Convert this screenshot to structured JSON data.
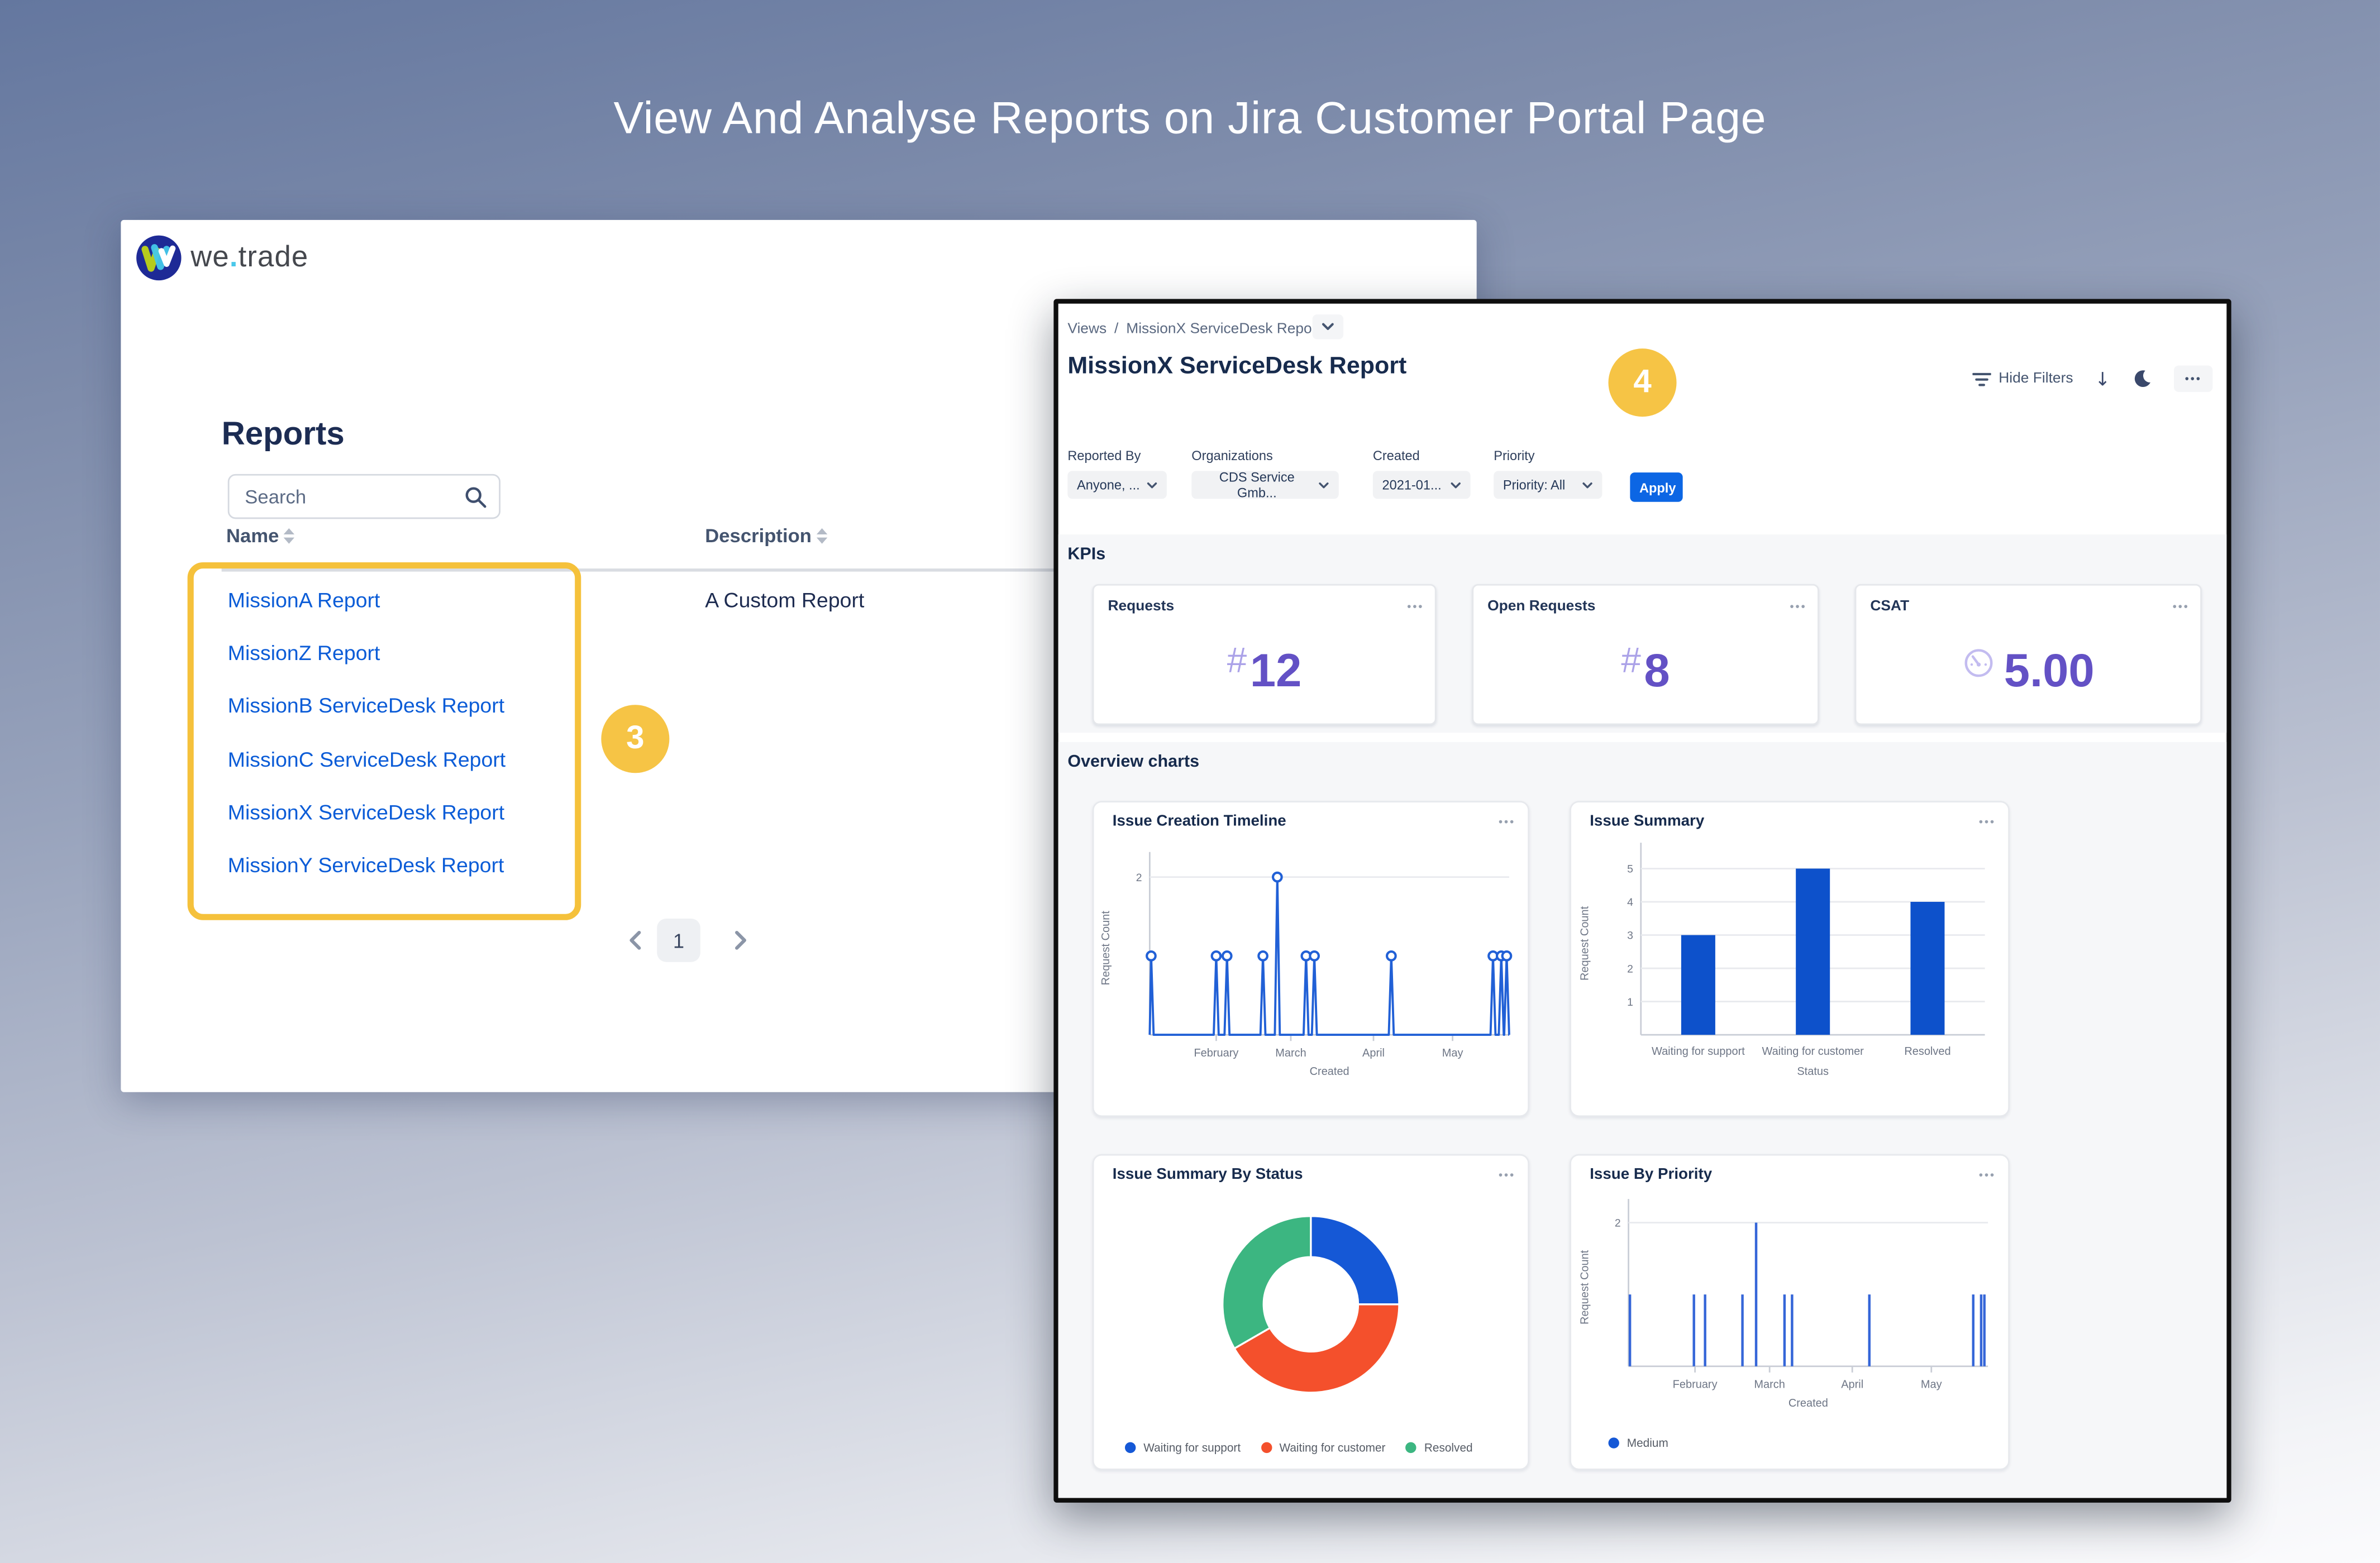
{
  "slide": {
    "title": "View And Analyse Reports on Jira Customer Portal Page"
  },
  "badges": {
    "step3": "3",
    "step4": "4"
  },
  "portal": {
    "brand": {
      "we": "we",
      "dot": ".",
      "trade": "trade"
    },
    "heading": "Reports",
    "search": {
      "placeholder": "Search"
    },
    "table": {
      "columns": [
        {
          "label": "Name"
        },
        {
          "label": "Description"
        }
      ],
      "rows": [
        {
          "name": "MissionA Report",
          "description": "A Custom Report"
        },
        {
          "name": "MissionZ Report",
          "description": ""
        },
        {
          "name": "MissionB ServiceDesk Report",
          "description": ""
        },
        {
          "name": "MissionC ServiceDesk Report",
          "description": ""
        },
        {
          "name": "MissionX ServiceDesk Report",
          "description": ""
        },
        {
          "name": "MissionY ServiceDesk Report",
          "description": ""
        }
      ]
    },
    "pagination": {
      "current_page": "1"
    }
  },
  "dashboard": {
    "breadcrumb": {
      "root": "Views",
      "separator": "/",
      "current": "MissionX ServiceDesk Report"
    },
    "title": "MissionX ServiceDesk Report",
    "toolbar": {
      "hide_filters_label": "Hide Filters",
      "more_label": "•••"
    },
    "filters": {
      "fields": [
        {
          "label": "Reported By",
          "value": "Anyone, ..."
        },
        {
          "label": "Organizations",
          "value": "CDS Service Gmb..."
        },
        {
          "label": "Created",
          "value": "2021-01..."
        },
        {
          "label": "Priority",
          "value": "Priority: All"
        }
      ],
      "apply_label": "Apply"
    },
    "kpi_section_title": "KPIs",
    "kpis": [
      {
        "label": "Requests",
        "prefix": "#",
        "value": "12"
      },
      {
        "label": "Open Requests",
        "prefix": "#",
        "value": "8"
      },
      {
        "label": "CSAT",
        "icon": "gauge-icon",
        "value": "5.00"
      }
    ],
    "charts_section_title": "Overview charts",
    "card_menu_label": "•••"
  },
  "chart_data": [
    {
      "type": "line",
      "title": "Issue Creation Timeline",
      "xlabel": "Created",
      "ylabel": "Request Count",
      "ylim": [
        0,
        2.2
      ],
      "yticks": [
        {
          "value": 2,
          "label": "2"
        }
      ],
      "x_axis_months": [
        {
          "label": "February",
          "pos": 0.185
        },
        {
          "label": "March",
          "pos": 0.3925
        },
        {
          "label": "April",
          "pos": 0.6225
        },
        {
          "label": "May",
          "pos": 0.8425
        }
      ],
      "points": [
        {
          "x": 0.004,
          "y": 1
        },
        {
          "x": 0.185,
          "y": 1
        },
        {
          "x": 0.215,
          "y": 1
        },
        {
          "x": 0.315,
          "y": 1
        },
        {
          "x": 0.355,
          "y": 2
        },
        {
          "x": 0.435,
          "y": 1
        },
        {
          "x": 0.458,
          "y": 1
        },
        {
          "x": 0.672,
          "y": 1
        },
        {
          "x": 0.955,
          "y": 1
        },
        {
          "x": 0.978,
          "y": 1
        },
        {
          "x": 0.993,
          "y": 1
        }
      ],
      "line_color": "#2160d6",
      "grid": true,
      "legend_position": "none"
    },
    {
      "type": "bar",
      "title": "Issue Summary",
      "xlabel": "Status",
      "ylabel": "Request Count",
      "categories": [
        "Waiting for support",
        "Waiting for customer",
        "Resolved"
      ],
      "values": [
        3,
        5,
        4
      ],
      "ylim": [
        0,
        5.5
      ],
      "yticks": [
        1,
        2,
        3,
        4,
        5
      ],
      "bar_color": "#0d51cb",
      "grid": true,
      "legend_position": "none"
    },
    {
      "type": "pie",
      "title": "Issue Summary By Status",
      "labels": [
        "Waiting for support",
        "Waiting for customer",
        "Resolved"
      ],
      "values": [
        3,
        5,
        4
      ],
      "colors": [
        "#1558d6",
        "#f4502c",
        "#3cb681"
      ],
      "donut": true,
      "legend_position": "bottom"
    },
    {
      "type": "bar",
      "title": "Issue By Priority",
      "xlabel": "Created",
      "ylabel": "Request Count",
      "ylim": [
        0,
        2.2
      ],
      "yticks": [
        {
          "value": 2,
          "label": "2"
        }
      ],
      "x_axis_months": [
        {
          "label": "February",
          "pos": 0.185
        },
        {
          "label": "March",
          "pos": 0.3925
        },
        {
          "label": "April",
          "pos": 0.6225
        },
        {
          "label": "May",
          "pos": 0.8425
        }
      ],
      "bars": [
        {
          "x": 0.004,
          "y": 1
        },
        {
          "x": 0.182,
          "y": 1
        },
        {
          "x": 0.213,
          "y": 1
        },
        {
          "x": 0.317,
          "y": 1
        },
        {
          "x": 0.355,
          "y": 2
        },
        {
          "x": 0.434,
          "y": 1
        },
        {
          "x": 0.455,
          "y": 1
        },
        {
          "x": 0.67,
          "y": 1
        },
        {
          "x": 0.959,
          "y": 1
        },
        {
          "x": 0.981,
          "y": 1
        },
        {
          "x": 0.99,
          "y": 1
        }
      ],
      "bar_color": "#3566d8",
      "legend": [
        "Medium"
      ],
      "legend_position": "bottom"
    }
  ],
  "colors": {
    "accent_yellow": "#f5c242",
    "link_blue": "#0b5cd7",
    "apply_blue": "#0c66e4",
    "kpi_purple": "#6554c0",
    "kpi_purple_light": "#aba2e8",
    "chart_blue": "#1d5bd6",
    "chart_orange": "#f4502c",
    "chart_green": "#3cb681",
    "navy_text": "#172b4d"
  }
}
